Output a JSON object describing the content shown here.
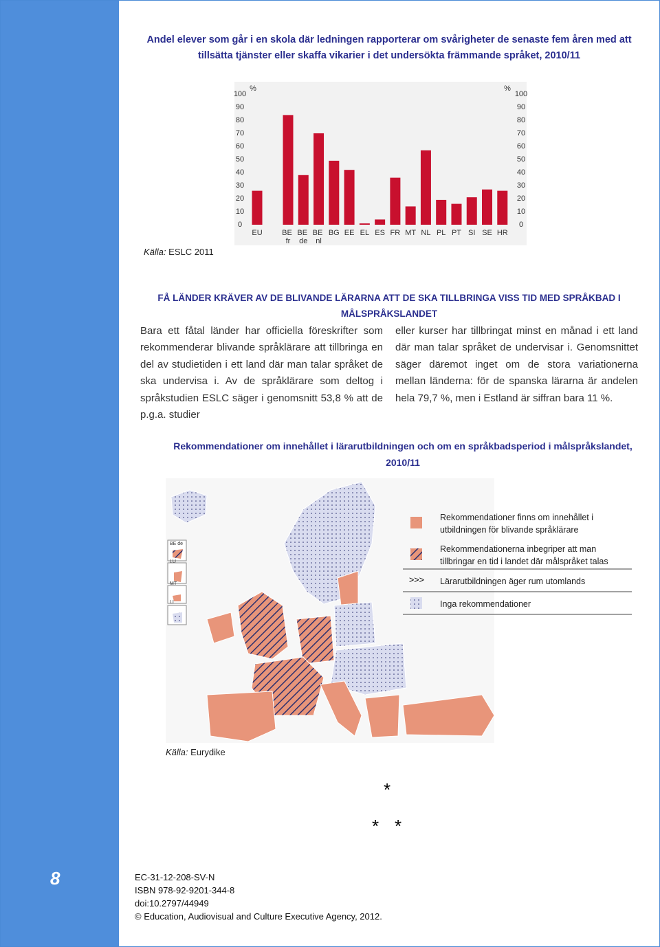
{
  "chart_section": {
    "title": "Andel elever som går i en skola där ledningen rapporterar om svårigheter de senaste fem åren med att tillsätta tjänster eller skaffa vikarier i det undersökta främmande språket, 2010/11",
    "source_label": "Källa:",
    "source": "ESLC 2011"
  },
  "chart_data": {
    "type": "bar",
    "categories": [
      "EU",
      "BE fr",
      "BE de",
      "BE nl",
      "BG",
      "EE",
      "EL",
      "ES",
      "FR",
      "MT",
      "NL",
      "PL",
      "PT",
      "SI",
      "SE",
      "HR"
    ],
    "values": [
      26,
      84,
      38,
      70,
      49,
      42,
      1,
      4,
      36,
      14,
      57,
      19,
      16,
      21,
      27,
      26
    ],
    "color": "#c8102e",
    "ylim": [
      0,
      100
    ],
    "yticks": [
      0,
      10,
      20,
      30,
      40,
      50,
      60,
      70,
      80,
      90,
      100
    ],
    "y2lim": [
      0,
      100
    ],
    "y2ticks": [
      0,
      10,
      20,
      30,
      40,
      50,
      60,
      70,
      80,
      90,
      100
    ],
    "y_label": "%",
    "y2_label": "%"
  },
  "section": {
    "heading": "FÅ LÄNDER KRÄVER AV DE BLIVANDE LÄRARNA ATT DE SKA TILLBRINGA VISS TID MED SPRÅKBAD I MÅLSPRÅKSLANDET",
    "columns": [
      "Bara ett fåtal länder har officiella föreskrifter som rekommenderar blivande språklärare att tillbringa en del av studietiden i ett land där man talar språket de ska undervisa i. Av de språklärare som deltog i språkstudien ESLC säger i genomsnitt 53,8 % att de p.g.a. studier",
      "eller kurser har tillbringat minst en månad i ett land där man talar språket de undervisar i. Genomsnittet säger däremot inget om de stora variationerna mellan länderna: för de spanska lärarna är andelen hela 79,7 %, men i Estland är siffran bara 11 %."
    ]
  },
  "map": {
    "title": "Rekommendationer om innehållet i lärarutbildningen och om en språkbadsperiod i målspråkslandet, 2010/11",
    "insets": [
      "BE de",
      "LU",
      "MT",
      "LI"
    ],
    "legend": [
      {
        "text": "Rekommendationer finns om innehållet i utbildningen för blivande språklärare"
      },
      {
        "text": "Rekommendationerna inbegriper att man tillbringar en tid i landet där målspråket talas"
      },
      {
        "symbol": ">>>",
        "text": "Lärarutbildningen äger rum utomlands"
      },
      {
        "text": "Inga rekommendationer"
      }
    ],
    "source_label": "Källa:",
    "source": "Eurydike"
  },
  "separator": [
    "*",
    "*",
    "*"
  ],
  "footer": {
    "page_number": "8",
    "lines": [
      "EC-31-12-208-SV-N",
      "ISBN 978-92-9201-344-8",
      "doi:10.2797/44949",
      "© Education, Audiovisual and Culture Executive Agency, 2012."
    ]
  }
}
